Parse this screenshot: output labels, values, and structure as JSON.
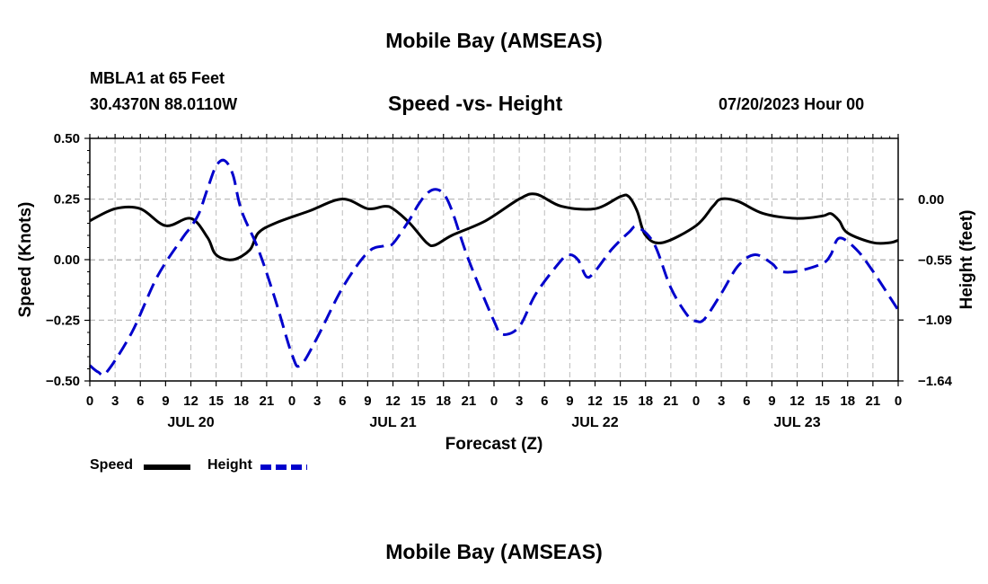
{
  "page": {
    "main_title": "Mobile Bay (AMSEAS)",
    "station": "MBLA1 at 65 Feet",
    "coords": "30.4370N  88.0110W",
    "subtitle": "Speed -vs- Height",
    "datetime": "07/20/2023 Hour 00",
    "footer_title": "Mobile Bay (AMSEAS)"
  },
  "colors": {
    "speed": "#000000",
    "height": "#0000cc",
    "grid": "#bbbbbb"
  },
  "chart_data": {
    "type": "line",
    "xlabel": "Forecast (Z)",
    "ylabel_left": "Speed (Knots)",
    "ylabel_right": "Height (feet)",
    "x_range_hours": [
      0,
      96
    ],
    "y_left_range": [
      -0.5,
      0.5
    ],
    "y_left_ticks": [
      0.5,
      0.25,
      0.0,
      -0.25,
      -0.5
    ],
    "y_left_tick_labels": [
      "0.50",
      "0.25",
      "0.00",
      "−0.25",
      "−0.50"
    ],
    "y_right_range": [
      -1.64,
      0.55
    ],
    "y_right_ticks": [
      0.0,
      -0.55,
      -1.09,
      -1.64
    ],
    "y_right_tick_labels": [
      "0.00",
      "−0.55",
      "−1.09",
      "−1.64"
    ],
    "x_ticks_hours": [
      0,
      3,
      6,
      9,
      12,
      15,
      18,
      21,
      24,
      27,
      30,
      33,
      36,
      39,
      42,
      45,
      48,
      51,
      54,
      57,
      60,
      63,
      66,
      69,
      72,
      75,
      78,
      81,
      84,
      87,
      90,
      93,
      96
    ],
    "x_tick_labels": [
      "0",
      "3",
      "6",
      "9",
      "12",
      "15",
      "18",
      "21",
      "0",
      "3",
      "6",
      "9",
      "12",
      "15",
      "18",
      "21",
      "0",
      "3",
      "6",
      "9",
      "12",
      "15",
      "18",
      "21",
      "0",
      "3",
      "6",
      "9",
      "12",
      "15",
      "18",
      "21",
      "0"
    ],
    "day_labels": [
      {
        "hour": 12,
        "label": "JUL 20"
      },
      {
        "hour": 36,
        "label": "JUL 21"
      },
      {
        "hour": 60,
        "label": "JUL 22"
      },
      {
        "hour": 84,
        "label": "JUL 23"
      }
    ],
    "series": [
      {
        "name": "Speed",
        "axis": "left",
        "style": "solid",
        "points": [
          [
            0,
            0.16
          ],
          [
            3,
            0.21
          ],
          [
            6,
            0.21
          ],
          [
            9,
            0.14
          ],
          [
            12,
            0.17
          ],
          [
            14,
            0.09
          ],
          [
            15,
            0.02
          ],
          [
            17,
            0.0
          ],
          [
            19,
            0.04
          ],
          [
            20,
            0.11
          ],
          [
            22,
            0.15
          ],
          [
            26,
            0.2
          ],
          [
            30,
            0.25
          ],
          [
            33,
            0.21
          ],
          [
            35,
            0.22
          ],
          [
            36,
            0.21
          ],
          [
            38,
            0.15
          ],
          [
            40,
            0.07
          ],
          [
            41,
            0.06
          ],
          [
            43,
            0.1
          ],
          [
            47,
            0.16
          ],
          [
            51,
            0.25
          ],
          [
            53,
            0.27
          ],
          [
            56,
            0.22
          ],
          [
            60,
            0.21
          ],
          [
            63,
            0.26
          ],
          [
            64,
            0.26
          ],
          [
            65,
            0.2
          ],
          [
            66,
            0.1
          ],
          [
            68,
            0.07
          ],
          [
            72,
            0.14
          ],
          [
            74,
            0.22
          ],
          [
            75,
            0.25
          ],
          [
            77,
            0.24
          ],
          [
            80,
            0.19
          ],
          [
            84,
            0.17
          ],
          [
            87,
            0.18
          ],
          [
            88,
            0.19
          ],
          [
            89,
            0.16
          ],
          [
            90,
            0.11
          ],
          [
            93,
            0.07
          ],
          [
            95,
            0.07
          ],
          [
            96,
            0.08
          ]
        ]
      },
      {
        "name": "Height",
        "axis": "right",
        "style": "dashed",
        "points": [
          [
            0,
            -1.5
          ],
          [
            1,
            -1.56
          ],
          [
            2,
            -1.56
          ],
          [
            5,
            -1.2
          ],
          [
            8,
            -0.7
          ],
          [
            11,
            -0.35
          ],
          [
            12,
            -0.25
          ],
          [
            13,
            -0.12
          ],
          [
            14,
            0.1
          ],
          [
            15,
            0.3
          ],
          [
            16,
            0.35
          ],
          [
            17,
            0.22
          ],
          [
            18,
            -0.1
          ],
          [
            20,
            -0.45
          ],
          [
            22,
            -0.9
          ],
          [
            24,
            -1.4
          ],
          [
            25,
            -1.5
          ],
          [
            27,
            -1.25
          ],
          [
            30,
            -0.8
          ],
          [
            33,
            -0.48
          ],
          [
            35,
            -0.42
          ],
          [
            36,
            -0.4
          ],
          [
            38,
            -0.18
          ],
          [
            39,
            -0.05
          ],
          [
            40,
            0.05
          ],
          [
            41,
            0.09
          ],
          [
            42,
            0.05
          ],
          [
            43,
            -0.1
          ],
          [
            45,
            -0.55
          ],
          [
            48,
            -1.1
          ],
          [
            49,
            -1.22
          ],
          [
            51,
            -1.15
          ],
          [
            53,
            -0.85
          ],
          [
            56,
            -0.55
          ],
          [
            57,
            -0.5
          ],
          [
            58,
            -0.55
          ],
          [
            59,
            -0.7
          ],
          [
            60,
            -0.65
          ],
          [
            62,
            -0.45
          ],
          [
            64,
            -0.3
          ],
          [
            65,
            -0.25
          ],
          [
            67,
            -0.4
          ],
          [
            69,
            -0.8
          ],
          [
            71,
            -1.05
          ],
          [
            72,
            -1.1
          ],
          [
            73,
            -1.08
          ],
          [
            75,
            -0.85
          ],
          [
            77,
            -0.6
          ],
          [
            79,
            -0.5
          ],
          [
            81,
            -0.58
          ],
          [
            82,
            -0.65
          ],
          [
            84,
            -0.65
          ],
          [
            87,
            -0.58
          ],
          [
            88,
            -0.5
          ],
          [
            89,
            -0.35
          ],
          [
            91,
            -0.45
          ],
          [
            93,
            -0.65
          ],
          [
            96,
            -1.0
          ]
        ]
      }
    ],
    "legend": {
      "position": "bottom-left",
      "items": [
        "Speed",
        "Height"
      ]
    }
  }
}
